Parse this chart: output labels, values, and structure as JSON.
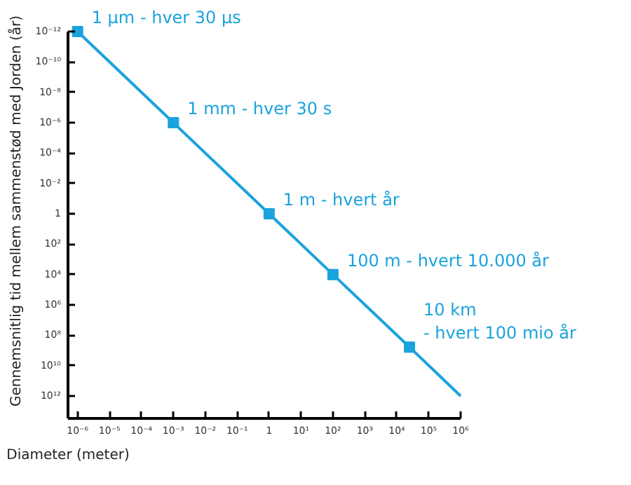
{
  "chart_data": {
    "type": "line",
    "xlabel": "Diameter (meter)",
    "ylabel": "Gennemsnitlig tid mellem sammenstød med Jorden (år)",
    "log": "xy",
    "xlim": [
      5e-07,
      1000000.0
    ],
    "ylim": [
      30000000000000.0,
      1e-12
    ],
    "xticks": [
      {
        "value": 1e-06,
        "label": "10⁻⁶"
      },
      {
        "value": 1e-05,
        "label": "10⁻⁵"
      },
      {
        "value": 0.0001,
        "label": "10⁻⁴"
      },
      {
        "value": 0.001,
        "label": "10⁻³"
      },
      {
        "value": 0.01,
        "label": "10⁻²"
      },
      {
        "value": 0.1,
        "label": "10⁻¹"
      },
      1,
      {
        "value": 10,
        "label": "10¹"
      },
      {
        "value": 100,
        "label": "10²"
      },
      {
        "value": 1000,
        "label": "10³"
      },
      {
        "value": 10000.0,
        "label": "10⁴"
      },
      {
        "value": 100000.0,
        "label": "10⁵"
      },
      {
        "value": 1000000.0,
        "label": "10⁶"
      }
    ],
    "yticks": [
      {
        "value": 1e-12,
        "label": "10⁻¹²"
      },
      {
        "value": 1e-10,
        "label": "10⁻¹⁰"
      },
      {
        "value": 1e-08,
        "label": "10⁻⁸"
      },
      {
        "value": 1e-06,
        "label": "10⁻⁶"
      },
      {
        "value": 0.0001,
        "label": "10⁻⁴"
      },
      {
        "value": 0.01,
        "label": "10⁻²"
      },
      1,
      {
        "value": 100,
        "label": "10²"
      },
      {
        "value": 10000.0,
        "label": "10⁴"
      },
      {
        "value": 1000000.0,
        "label": "10⁶"
      },
      {
        "value": 100000000.0,
        "label": "10⁸"
      },
      {
        "value": 10000000000.0,
        "label": "10¹⁰"
      },
      {
        "value": 1000000000000.0,
        "label": "10¹²"
      }
    ],
    "grid": false,
    "series": [
      {
        "color": "#1aa3dc",
        "marker": "none",
        "line_style": "solid",
        "x": [
          1e-06,
          0.001,
          1,
          100,
          25000.0,
          1000000.0
        ],
        "values": [
          1e-12,
          1e-06,
          1,
          10000.0,
          600000000.0,
          1000000000000.0
        ]
      },
      {
        "type": "scatter",
        "color": "#1aa3dc",
        "marker": "square",
        "x": [
          1e-06,
          0.001,
          1,
          100,
          25000.0
        ],
        "values": [
          1e-12,
          1e-06,
          1,
          10000.0,
          600000000.0
        ]
      }
    ],
    "annotations": [
      {
        "text": "1 µm - hver 30 µs",
        "x": 1e-06,
        "y": 1e-12
      },
      {
        "text": "1 mm - hver 30 s",
        "x": 0.001,
        "y": 1e-06
      },
      {
        "text": "1 m - hvert år",
        "x": 1,
        "y": 1
      },
      {
        "text": "100 m - hvert 10.000 år",
        "x": 100,
        "y": 10000.0
      },
      {
        "text": "10 km\n - hvert 100 mio år",
        "x": 25000.0,
        "y": 600000000.0
      }
    ]
  }
}
